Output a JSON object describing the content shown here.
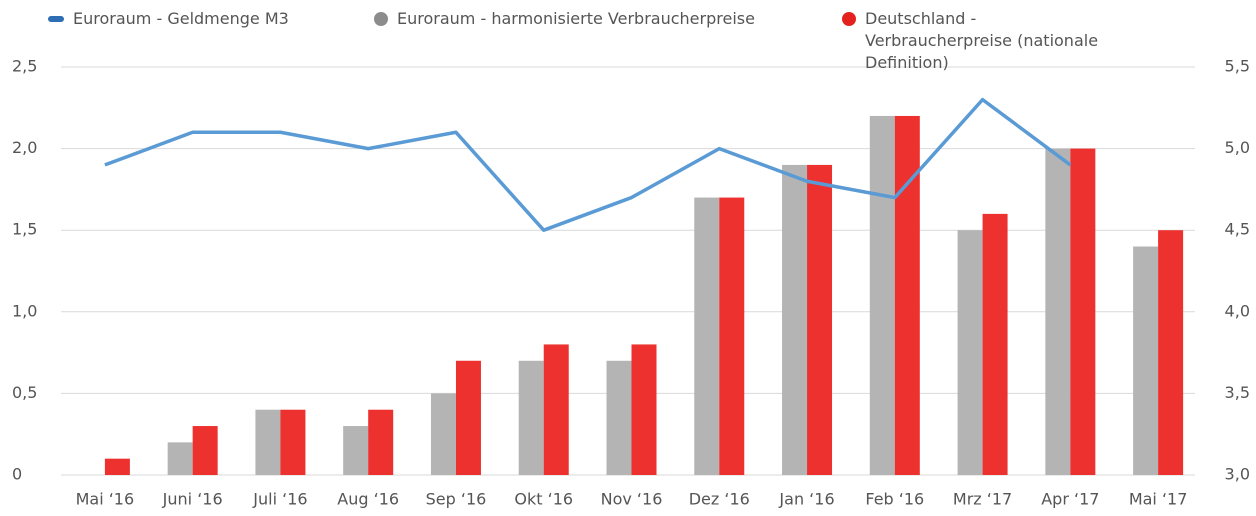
{
  "chart_data": {
    "type": "bar_line",
    "categories": [
      "Mai ‘16",
      "Juni ‘16",
      "Juli ‘16",
      "Aug ‘16",
      "Sep ‘16",
      "Okt ‘16",
      "Nov ‘16",
      "Dez ‘16",
      "Jan ‘16",
      "Feb ‘16",
      "Mrz ‘17",
      "Apr ‘17",
      "Mai ‘17"
    ],
    "series": [
      {
        "name": "Euroraum - Geldmenge M3",
        "color": "#5a9bd5",
        "legend_color": "#2f6db5",
        "kind": "line",
        "axis": "y2",
        "values": [
          4.9,
          5.1,
          5.1,
          5.0,
          5.1,
          4.5,
          4.7,
          5.0,
          4.8,
          4.7,
          5.3,
          4.9,
          null
        ]
      },
      {
        "name": "Euroraum - harmonisierte Verbraucherpreise",
        "color": "#b4b4b4",
        "legend_color": "#8c8c8c",
        "kind": "bar",
        "values": [
          0,
          0.2,
          0.4,
          0.3,
          0.5,
          0.7,
          0.7,
          1.7,
          1.9,
          2.2,
          1.5,
          2.0,
          1.4
        ]
      },
      {
        "name": "Deutschland - Verbraucherpreise (nationale Definition)",
        "color": "#ec312e",
        "legend_color": "#e3221f",
        "kind": "bar",
        "values": [
          0.1,
          0.3,
          0.4,
          0.4,
          0.7,
          0.8,
          0.8,
          1.7,
          1.9,
          2.2,
          1.6,
          2.0,
          1.5
        ]
      }
    ],
    "ylim": [
      0,
      2.5
    ],
    "yticks": [
      0,
      {
        "value": 0.5,
        "label": "0,5"
      },
      {
        "value": 1,
        "label": "1,0"
      },
      {
        "value": 1.5,
        "label": "1,5"
      },
      {
        "value": 2,
        "label": "2,0"
      },
      {
        "value": 2.5,
        "label": "2,5"
      }
    ],
    "y2lim": [
      3,
      5.5
    ],
    "y2ticks": [
      {
        "value": 3,
        "label": "3,0"
      },
      {
        "value": 3.5,
        "label": "3,5"
      },
      {
        "value": 4,
        "label": "4,0"
      },
      {
        "value": 4.5,
        "label": "4,5"
      },
      {
        "value": 5,
        "label": "5,0"
      },
      {
        "value": 5.5,
        "label": "5,5"
      }
    ],
    "grid": true
  }
}
